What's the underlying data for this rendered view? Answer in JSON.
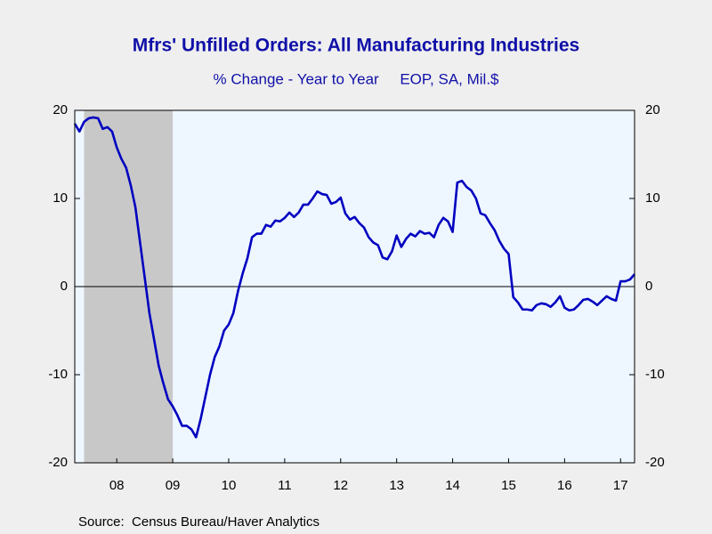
{
  "chart_data": {
    "type": "line",
    "title": "Mfrs' Unfilled Orders: All Manufacturing Industries",
    "subtitle": "% Change - Year to Year     EOP, SA, Mil.$",
    "source": "Source:  Census Bureau/Haver Analytics",
    "x": [
      2007.75,
      2007.8333,
      2007.9167,
      2008,
      2008.0833,
      2008.1667,
      2008.25,
      2008.3333,
      2008.4167,
      2008.5,
      2008.5833,
      2008.6667,
      2008.75,
      2008.8333,
      2008.9167,
      2009,
      2009.0833,
      2009.1667,
      2009.25,
      2009.3333,
      2009.4167,
      2009.5,
      2009.5833,
      2009.6667,
      2009.75,
      2009.8333,
      2009.9167,
      2010,
      2010.0833,
      2010.1667,
      2010.25,
      2010.3333,
      2010.4167,
      2010.5,
      2010.5833,
      2010.6667,
      2010.75,
      2010.8333,
      2010.9167,
      2011,
      2011.0833,
      2011.1667,
      2011.25,
      2011.3333,
      2011.4167,
      2011.5,
      2011.5833,
      2011.6667,
      2011.75,
      2011.8333,
      2011.9167,
      2012,
      2012.0833,
      2012.1667,
      2012.25,
      2012.3333,
      2012.4167,
      2012.5,
      2012.5833,
      2012.6667,
      2012.75,
      2012.8333,
      2012.9167,
      2013,
      2013.0833,
      2013.1667,
      2013.25,
      2013.3333,
      2013.4167,
      2013.5,
      2013.5833,
      2013.6667,
      2013.75,
      2013.8333,
      2013.9167,
      2014,
      2014.0833,
      2014.1667,
      2014.25,
      2014.3333,
      2014.4167,
      2014.5,
      2014.5833,
      2014.6667,
      2014.75,
      2014.8333,
      2014.9167,
      2015,
      2015.0833,
      2015.1667,
      2015.25,
      2015.3333,
      2015.4167,
      2015.5,
      2015.5833,
      2015.6667,
      2015.75,
      2015.8333,
      2015.9167,
      2016,
      2016.0833,
      2016.1667,
      2016.25,
      2016.3333,
      2016.4167,
      2016.5,
      2016.5833,
      2016.6667,
      2016.75,
      2016.8333,
      2016.9167,
      2017,
      2017.0833,
      2017.1667,
      2017.25,
      2017.3333,
      2017.4167,
      2017.5,
      2017.5833,
      2017.6667,
      2017.75
    ],
    "series": [
      {
        "color": "#0000c0",
        "values": [
          18.5,
          17.6,
          18.7,
          19.1,
          19.2,
          19.1,
          17.9,
          18.1,
          17.6,
          15.8,
          14.5,
          13.5,
          11.5,
          9,
          5,
          1,
          -3,
          -6,
          -9,
          -11,
          -12.8,
          -13.6,
          -14.6,
          -15.8,
          -15.8,
          -16.2,
          -17.1,
          -15,
          -12.5,
          -10,
          -8,
          -6.8,
          -5,
          -4.3,
          -3,
          -0.5,
          1.5,
          3.2,
          5.6,
          6,
          6,
          7,
          6.8,
          7.5,
          7.4,
          7.8,
          8.4,
          7.9,
          8.4,
          9.3,
          9.3,
          10,
          10.8,
          10.5,
          10.4,
          9.4,
          9.6,
          10.1,
          8.3,
          7.6,
          7.9,
          7.2,
          6.7,
          5.6,
          5,
          4.7,
          3.3,
          3.1,
          4,
          5.8,
          4.5,
          5.4,
          6,
          5.7,
          6.3,
          6,
          6.1,
          5.6,
          7,
          7.8,
          7.4,
          6.2,
          11.8,
          12,
          11.3,
          10.9,
          10,
          8.3,
          8.1,
          7.2,
          6.4,
          5.2,
          4.3,
          3.7,
          -1.2,
          -1.8,
          -2.6,
          -2.6,
          -2.7,
          -2.1,
          -1.9,
          -2,
          -2.3,
          -1.8,
          -1.1,
          -2.4,
          -2.7,
          -2.6,
          -2.1,
          -1.5,
          -1.4,
          -1.7,
          -2.1,
          -1.6,
          -1.1,
          -1.4,
          -1.6,
          0.6,
          0.6,
          0.8,
          1.4
        ]
      }
    ],
    "recession": [
      2007.9167,
      2009.5
    ],
    "xlim": [
      2007.75,
      2017.75
    ],
    "xticks": [
      {
        "value": 2008.5,
        "label": "08"
      },
      {
        "value": 2009.5,
        "label": "09"
      },
      {
        "value": 2010.5,
        "label": "10"
      },
      {
        "value": 2011.5,
        "label": "11"
      },
      {
        "value": 2012.5,
        "label": "12"
      },
      {
        "value": 2013.5,
        "label": "13"
      },
      {
        "value": 2014.5,
        "label": "14"
      },
      {
        "value": 2015.5,
        "label": "15"
      },
      {
        "value": 2016.5,
        "label": "16"
      },
      {
        "value": 2017.5,
        "label": "17"
      }
    ],
    "ylim": [
      -20,
      20
    ],
    "yticks": [
      -20,
      -10,
      0,
      10,
      20
    ]
  }
}
